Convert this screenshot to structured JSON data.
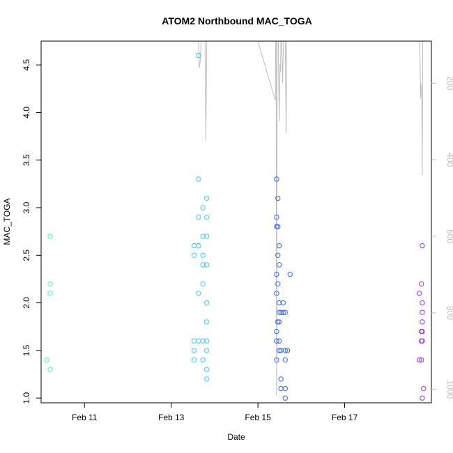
{
  "chart_data": {
    "type": "scatter",
    "title": "ATOM2 Northbound MAC_TOGA",
    "xlabel": "Date",
    "ylabel": "MAC_TOGA",
    "x_ticks": [
      {
        "label": "Feb 11",
        "day": 11
      },
      {
        "label": "Feb 13",
        "day": 13
      },
      {
        "label": "Feb 15",
        "day": 15
      },
      {
        "label": "Feb 17",
        "day": 17
      }
    ],
    "y_ticks": [
      "1.0",
      "1.5",
      "2.0",
      "2.5",
      "3.0",
      "3.5",
      "4.0",
      "4.5"
    ],
    "right_ticks": [
      "200",
      "400",
      "600",
      "800",
      "1000"
    ],
    "xlim_day": [
      10.0,
      19.0
    ],
    "ylim": [
      0.95,
      4.75
    ],
    "right_ylim": [
      1035,
      90
    ],
    "grid": false,
    "legend": "none",
    "point_colors": {
      "feb10": "#33ffcc",
      "feb13": "#33ccff",
      "feb15": "#3366ff",
      "feb18": "#9933ff"
    },
    "line_color": "#bdbdbd",
    "series": [
      {
        "color": "#33ffcc",
        "points": [
          {
            "x": 10.13,
            "y": 1.4
          },
          {
            "x": 10.21,
            "y": 1.3
          },
          {
            "x": 10.21,
            "y": 2.1
          },
          {
            "x": 10.21,
            "y": 2.2
          },
          {
            "x": 10.21,
            "y": 2.7
          }
        ]
      },
      {
        "color": "#33ccff",
        "points": [
          {
            "x": 13.53,
            "y": 1.4
          },
          {
            "x": 13.53,
            "y": 1.5
          },
          {
            "x": 13.53,
            "y": 1.6
          },
          {
            "x": 13.53,
            "y": 2.5
          },
          {
            "x": 13.53,
            "y": 2.6
          },
          {
            "x": 13.63,
            "y": 1.6
          },
          {
            "x": 13.63,
            "y": 2.1
          },
          {
            "x": 13.63,
            "y": 2.6
          },
          {
            "x": 13.63,
            "y": 2.9
          },
          {
            "x": 13.63,
            "y": 3.3
          },
          {
            "x": 13.63,
            "y": 4.6
          },
          {
            "x": 13.73,
            "y": 1.4
          },
          {
            "x": 13.73,
            "y": 1.6
          },
          {
            "x": 13.73,
            "y": 2.2
          },
          {
            "x": 13.73,
            "y": 2.4
          },
          {
            "x": 13.73,
            "y": 2.5
          },
          {
            "x": 13.73,
            "y": 2.7
          },
          {
            "x": 13.73,
            "y": 3.0
          },
          {
            "x": 13.82,
            "y": 1.2
          },
          {
            "x": 13.82,
            "y": 1.3
          },
          {
            "x": 13.82,
            "y": 1.5
          },
          {
            "x": 13.82,
            "y": 1.6
          },
          {
            "x": 13.82,
            "y": 1.8
          },
          {
            "x": 13.82,
            "y": 2.0
          },
          {
            "x": 13.82,
            "y": 2.4
          },
          {
            "x": 13.82,
            "y": 2.7
          },
          {
            "x": 13.82,
            "y": 2.9
          },
          {
            "x": 13.82,
            "y": 3.1
          }
        ]
      },
      {
        "color": "#3366ff",
        "points": [
          {
            "x": 15.43,
            "y": 1.4
          },
          {
            "x": 15.43,
            "y": 1.6
          },
          {
            "x": 15.43,
            "y": 1.7
          },
          {
            "x": 15.43,
            "y": 2.1
          },
          {
            "x": 15.43,
            "y": 2.3
          },
          {
            "x": 15.43,
            "y": 2.8
          },
          {
            "x": 15.43,
            "y": 2.9
          },
          {
            "x": 15.43,
            "y": 3.3
          },
          {
            "x": 15.46,
            "y": 1.8
          },
          {
            "x": 15.46,
            "y": 2.2
          },
          {
            "x": 15.46,
            "y": 2.5
          },
          {
            "x": 15.46,
            "y": 2.8
          },
          {
            "x": 15.46,
            "y": 3.1
          },
          {
            "x": 15.49,
            "y": 1.5
          },
          {
            "x": 15.49,
            "y": 1.6
          },
          {
            "x": 15.49,
            "y": 1.8
          },
          {
            "x": 15.49,
            "y": 1.9
          },
          {
            "x": 15.49,
            "y": 2.0
          },
          {
            "x": 15.49,
            "y": 2.4
          },
          {
            "x": 15.49,
            "y": 2.6
          },
          {
            "x": 15.53,
            "y": 1.1
          },
          {
            "x": 15.53,
            "y": 1.2
          },
          {
            "x": 15.53,
            "y": 1.5
          },
          {
            "x": 15.53,
            "y": 1.9
          },
          {
            "x": 15.58,
            "y": 1.9
          },
          {
            "x": 15.58,
            "y": 2.0
          },
          {
            "x": 15.63,
            "y": 1.0
          },
          {
            "x": 15.63,
            "y": 1.1
          },
          {
            "x": 15.63,
            "y": 1.4
          },
          {
            "x": 15.63,
            "y": 1.5
          },
          {
            "x": 15.63,
            "y": 1.9
          },
          {
            "x": 15.68,
            "y": 1.5
          },
          {
            "x": 15.74,
            "y": 2.3
          }
        ]
      },
      {
        "color": "#9933ff",
        "points": [
          {
            "x": 18.72,
            "y": 1.4
          },
          {
            "x": 18.72,
            "y": 2.1
          },
          {
            "x": 18.77,
            "y": 1.4
          },
          {
            "x": 18.77,
            "y": 1.6
          },
          {
            "x": 18.77,
            "y": 1.7
          },
          {
            "x": 18.77,
            "y": 2.2
          },
          {
            "x": 18.79,
            "y": 1.0
          },
          {
            "x": 18.79,
            "y": 1.6
          },
          {
            "x": 18.79,
            "y": 1.7
          },
          {
            "x": 18.79,
            "y": 1.8
          },
          {
            "x": 18.79,
            "y": 1.9
          },
          {
            "x": 18.79,
            "y": 2.0
          },
          {
            "x": 18.79,
            "y": 2.6
          },
          {
            "x": 18.82,
            "y": 1.1
          }
        ]
      }
    ],
    "line_series": [
      [
        {
          "x": 13.63,
          "y": 0
        },
        {
          "x": 13.65,
          "y": 160
        },
        {
          "x": 13.67,
          "y": 140
        },
        {
          "x": 13.69,
          "y": 20
        },
        {
          "x": 13.73,
          "y": 0
        },
        {
          "x": 13.78,
          "y": 0
        },
        {
          "x": 13.8,
          "y": 350
        },
        {
          "x": 13.82,
          "y": 0
        }
      ],
      [
        {
          "x": 15.0,
          "y": 50
        },
        {
          "x": 15.4,
          "y": 245
        },
        {
          "x": 15.41,
          "y": 1
        }
      ],
      [
        {
          "x": 15.42,
          "y": 0
        },
        {
          "x": 15.43,
          "y": 1015
        },
        {
          "x": 15.44,
          "y": 0
        },
        {
          "x": 15.47,
          "y": 0
        },
        {
          "x": 15.49,
          "y": 300
        },
        {
          "x": 15.51,
          "y": 150
        },
        {
          "x": 15.52,
          "y": 170
        },
        {
          "x": 15.53,
          "y": 0
        },
        {
          "x": 15.55,
          "y": 0
        },
        {
          "x": 15.57,
          "y": 200
        },
        {
          "x": 15.59,
          "y": 0
        },
        {
          "x": 15.63,
          "y": 0
        },
        {
          "x": 15.65,
          "y": 330
        },
        {
          "x": 15.66,
          "y": 0
        }
      ],
      [
        {
          "x": 18.72,
          "y": 0
        },
        {
          "x": 18.74,
          "y": 140
        },
        {
          "x": 18.75,
          "y": 240
        },
        {
          "x": 18.76,
          "y": 200
        },
        {
          "x": 18.78,
          "y": 240
        },
        {
          "x": 18.79,
          "y": 440
        },
        {
          "x": 18.8,
          "y": 0
        }
      ]
    ]
  }
}
